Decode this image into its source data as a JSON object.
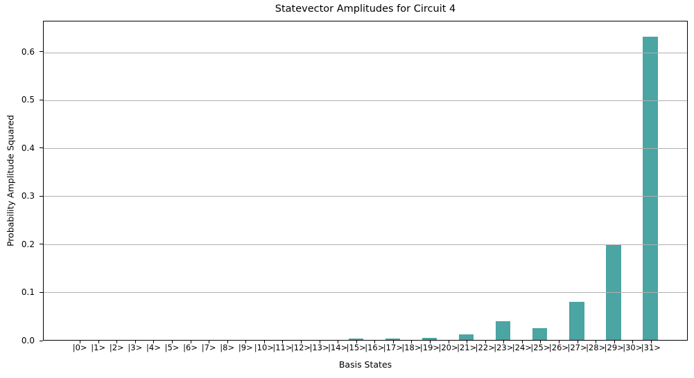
{
  "chart_data": {
    "type": "bar",
    "title": "Statevector Amplitudes for Circuit 4",
    "xlabel": "Basis States",
    "ylabel": "Probability Amplitude Squared",
    "categories": [
      "|0>",
      "|1>",
      "|2>",
      "|3>",
      "|4>",
      "|5>",
      "|6>",
      "|7>",
      "|8>",
      "|9>",
      "|10>",
      "|11>",
      "|12>",
      "|13>",
      "|14>",
      "|15>",
      "|16>",
      "|17>",
      "|18>",
      "|19>",
      "|20>",
      "|21>",
      "|22>",
      "|23>",
      "|24>",
      "|25>",
      "|26>",
      "|27>",
      "|28>",
      "|29>",
      "|30>",
      "|31>"
    ],
    "values": [
      0,
      0,
      0,
      0,
      0,
      0,
      0,
      0,
      0,
      0,
      0,
      0,
      0,
      0,
      0,
      0.003,
      0,
      0.003,
      0,
      0.005,
      0,
      0.012,
      0,
      0.039,
      0,
      0.024,
      0,
      0.079,
      0,
      0.2,
      0,
      0.633
    ],
    "yticks": [
      0.0,
      0.1,
      0.2,
      0.3,
      0.4,
      0.5,
      0.6
    ],
    "ytick_labels": [
      "0.0",
      "0.1",
      "0.2",
      "0.3",
      "0.4",
      "0.5",
      "0.6"
    ],
    "ylim": [
      0,
      0.6647
    ],
    "xlim_units": [
      -2,
      33
    ],
    "bar_width_units": 0.8,
    "grid": "horizontal",
    "legend": "none",
    "bar_color": "#4aa5a3",
    "grid_color": "#b0b0b0",
    "spine_color": "#000000"
  }
}
